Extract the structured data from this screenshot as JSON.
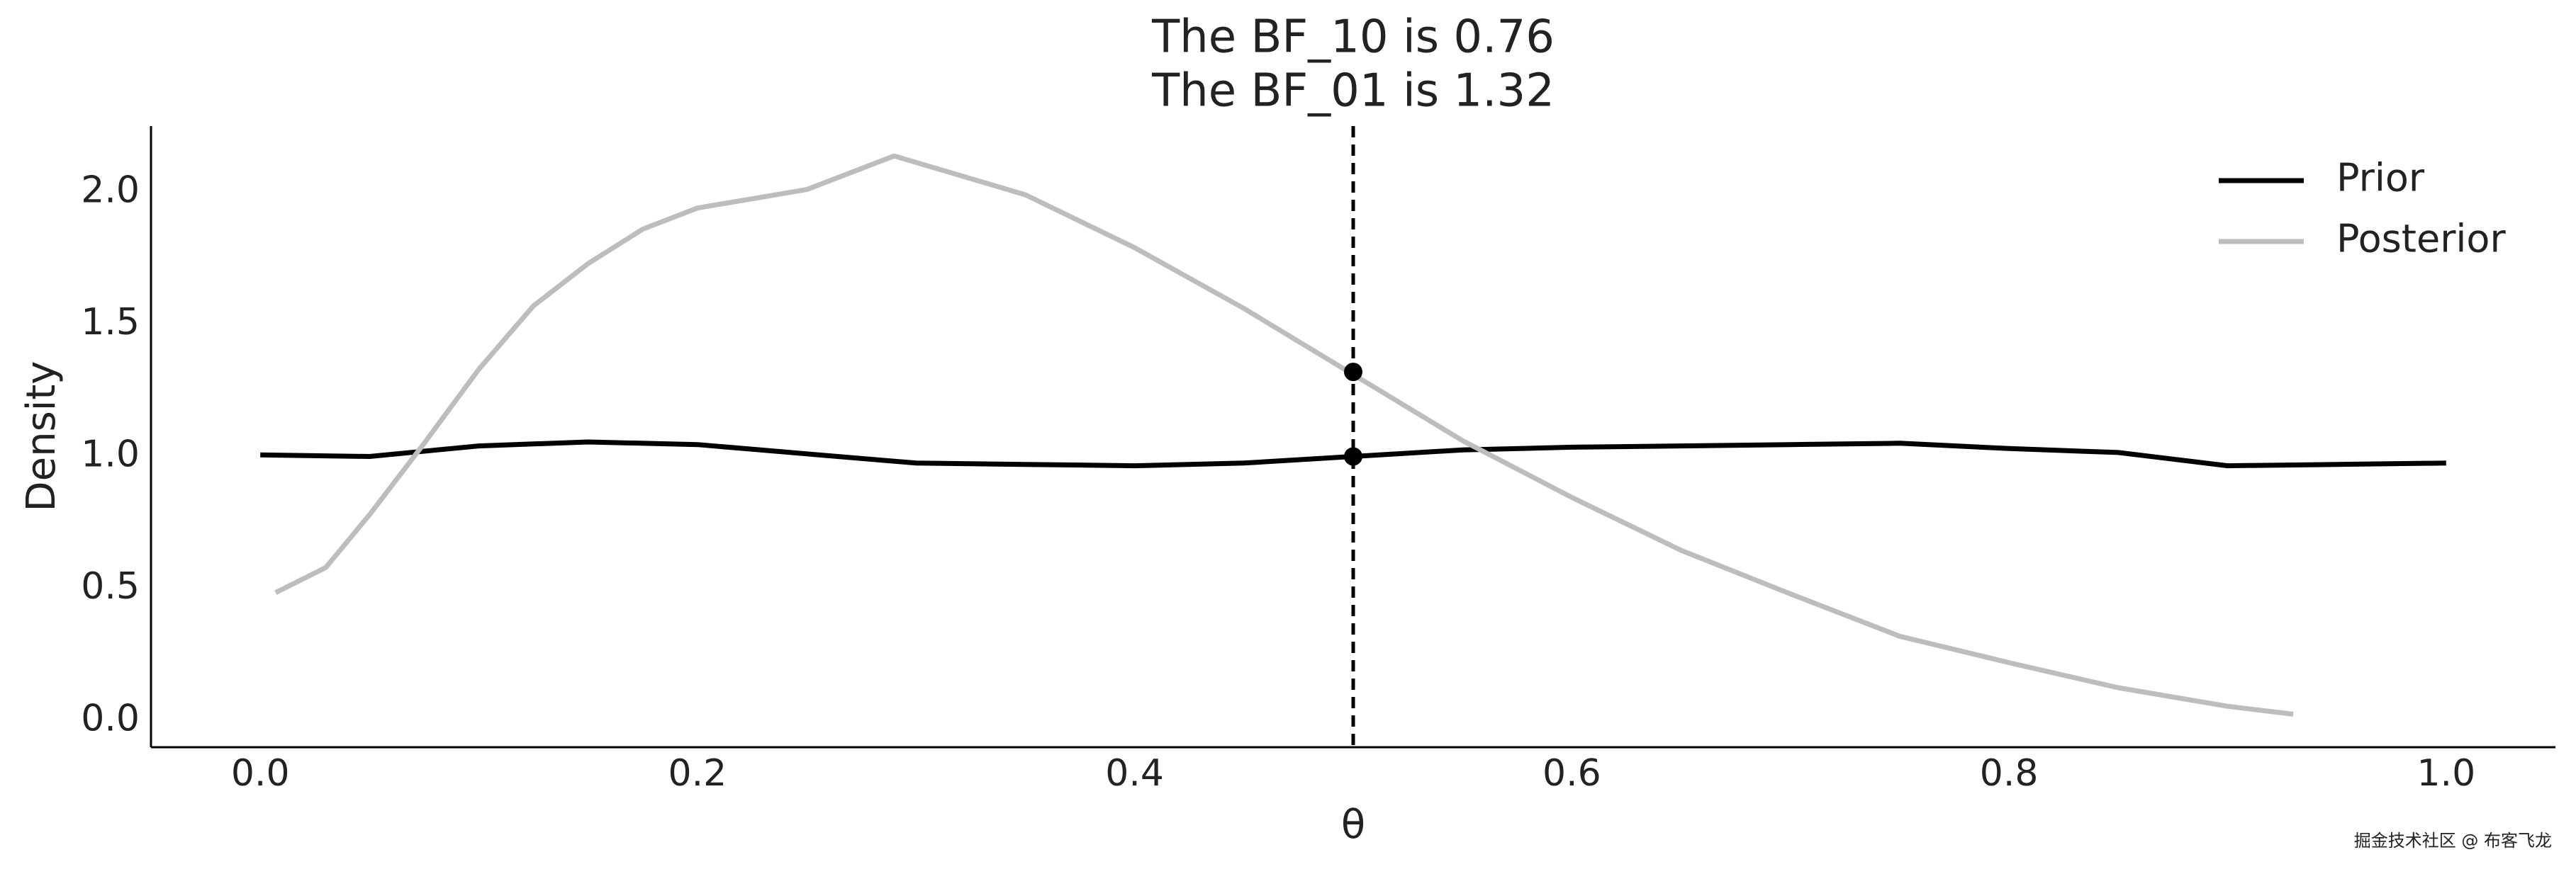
{
  "chart_data": {
    "type": "line",
    "title": [
      "The BF_10 is 0.76",
      "The BF_01 is 1.32"
    ],
    "x_label": "θ",
    "y_label": "Density",
    "xlim": [
      -0.05,
      1.05
    ],
    "ylim": [
      -0.1,
      2.25
    ],
    "xticks": [
      {
        "value": 0,
        "label": "0.0"
      },
      0.2,
      0.4,
      0.6,
      0.8,
      {
        "value": 1,
        "label": "1.0"
      }
    ],
    "yticks": [
      {
        "value": 0,
        "label": "0.0"
      },
      0.5,
      {
        "value": 1,
        "label": "1.0"
      },
      1.5,
      {
        "value": 2,
        "label": "2.0"
      }
    ],
    "grid": false,
    "legend": "upper right",
    "series": [
      {
        "name": "Prior",
        "color": "#000000",
        "x": [
          0,
          0.05,
          0.1,
          0.15,
          0.2,
          0.25,
          0.3,
          0.35,
          0.4,
          0.45,
          0.5,
          0.55,
          0.6,
          0.65,
          0.7,
          0.75,
          0.8,
          0.85,
          0.9,
          0.95,
          1.0
        ],
        "values": [
          1.006,
          1.0,
          1.04,
          1.055,
          1.045,
          1.01,
          0.975,
          0.97,
          0.965,
          0.975,
          1.0,
          1.025,
          1.035,
          1.04,
          1.045,
          1.05,
          1.03,
          1.015,
          0.965,
          0.97,
          0.975
        ]
      },
      {
        "name": "Posterior",
        "color": "#bdbdbd",
        "x": [
          0.007,
          0.03,
          0.05,
          0.075,
          0.1,
          0.125,
          0.15,
          0.175,
          0.2,
          0.25,
          0.29,
          0.35,
          0.4,
          0.45,
          0.5,
          0.55,
          0.6,
          0.65,
          0.7,
          0.75,
          0.8,
          0.85,
          0.9,
          0.93
        ],
        "values": [
          0.485,
          0.58,
          0.78,
          1.05,
          1.33,
          1.57,
          1.73,
          1.86,
          1.94,
          2.01,
          2.137,
          1.99,
          1.79,
          1.56,
          1.31,
          1.06,
          0.845,
          0.645,
          0.48,
          0.32,
          0.22,
          0.125,
          0.055,
          0.025
        ]
      }
    ],
    "reference_line": {
      "x": 0.5,
      "color": "#000000"
    },
    "points": {
      "x": [
        0.5,
        0.5
      ],
      "values": [
        1.32,
        1.0
      ],
      "color": "#000000"
    },
    "watermark": "掘金技术社区 @ 布客飞龙"
  }
}
